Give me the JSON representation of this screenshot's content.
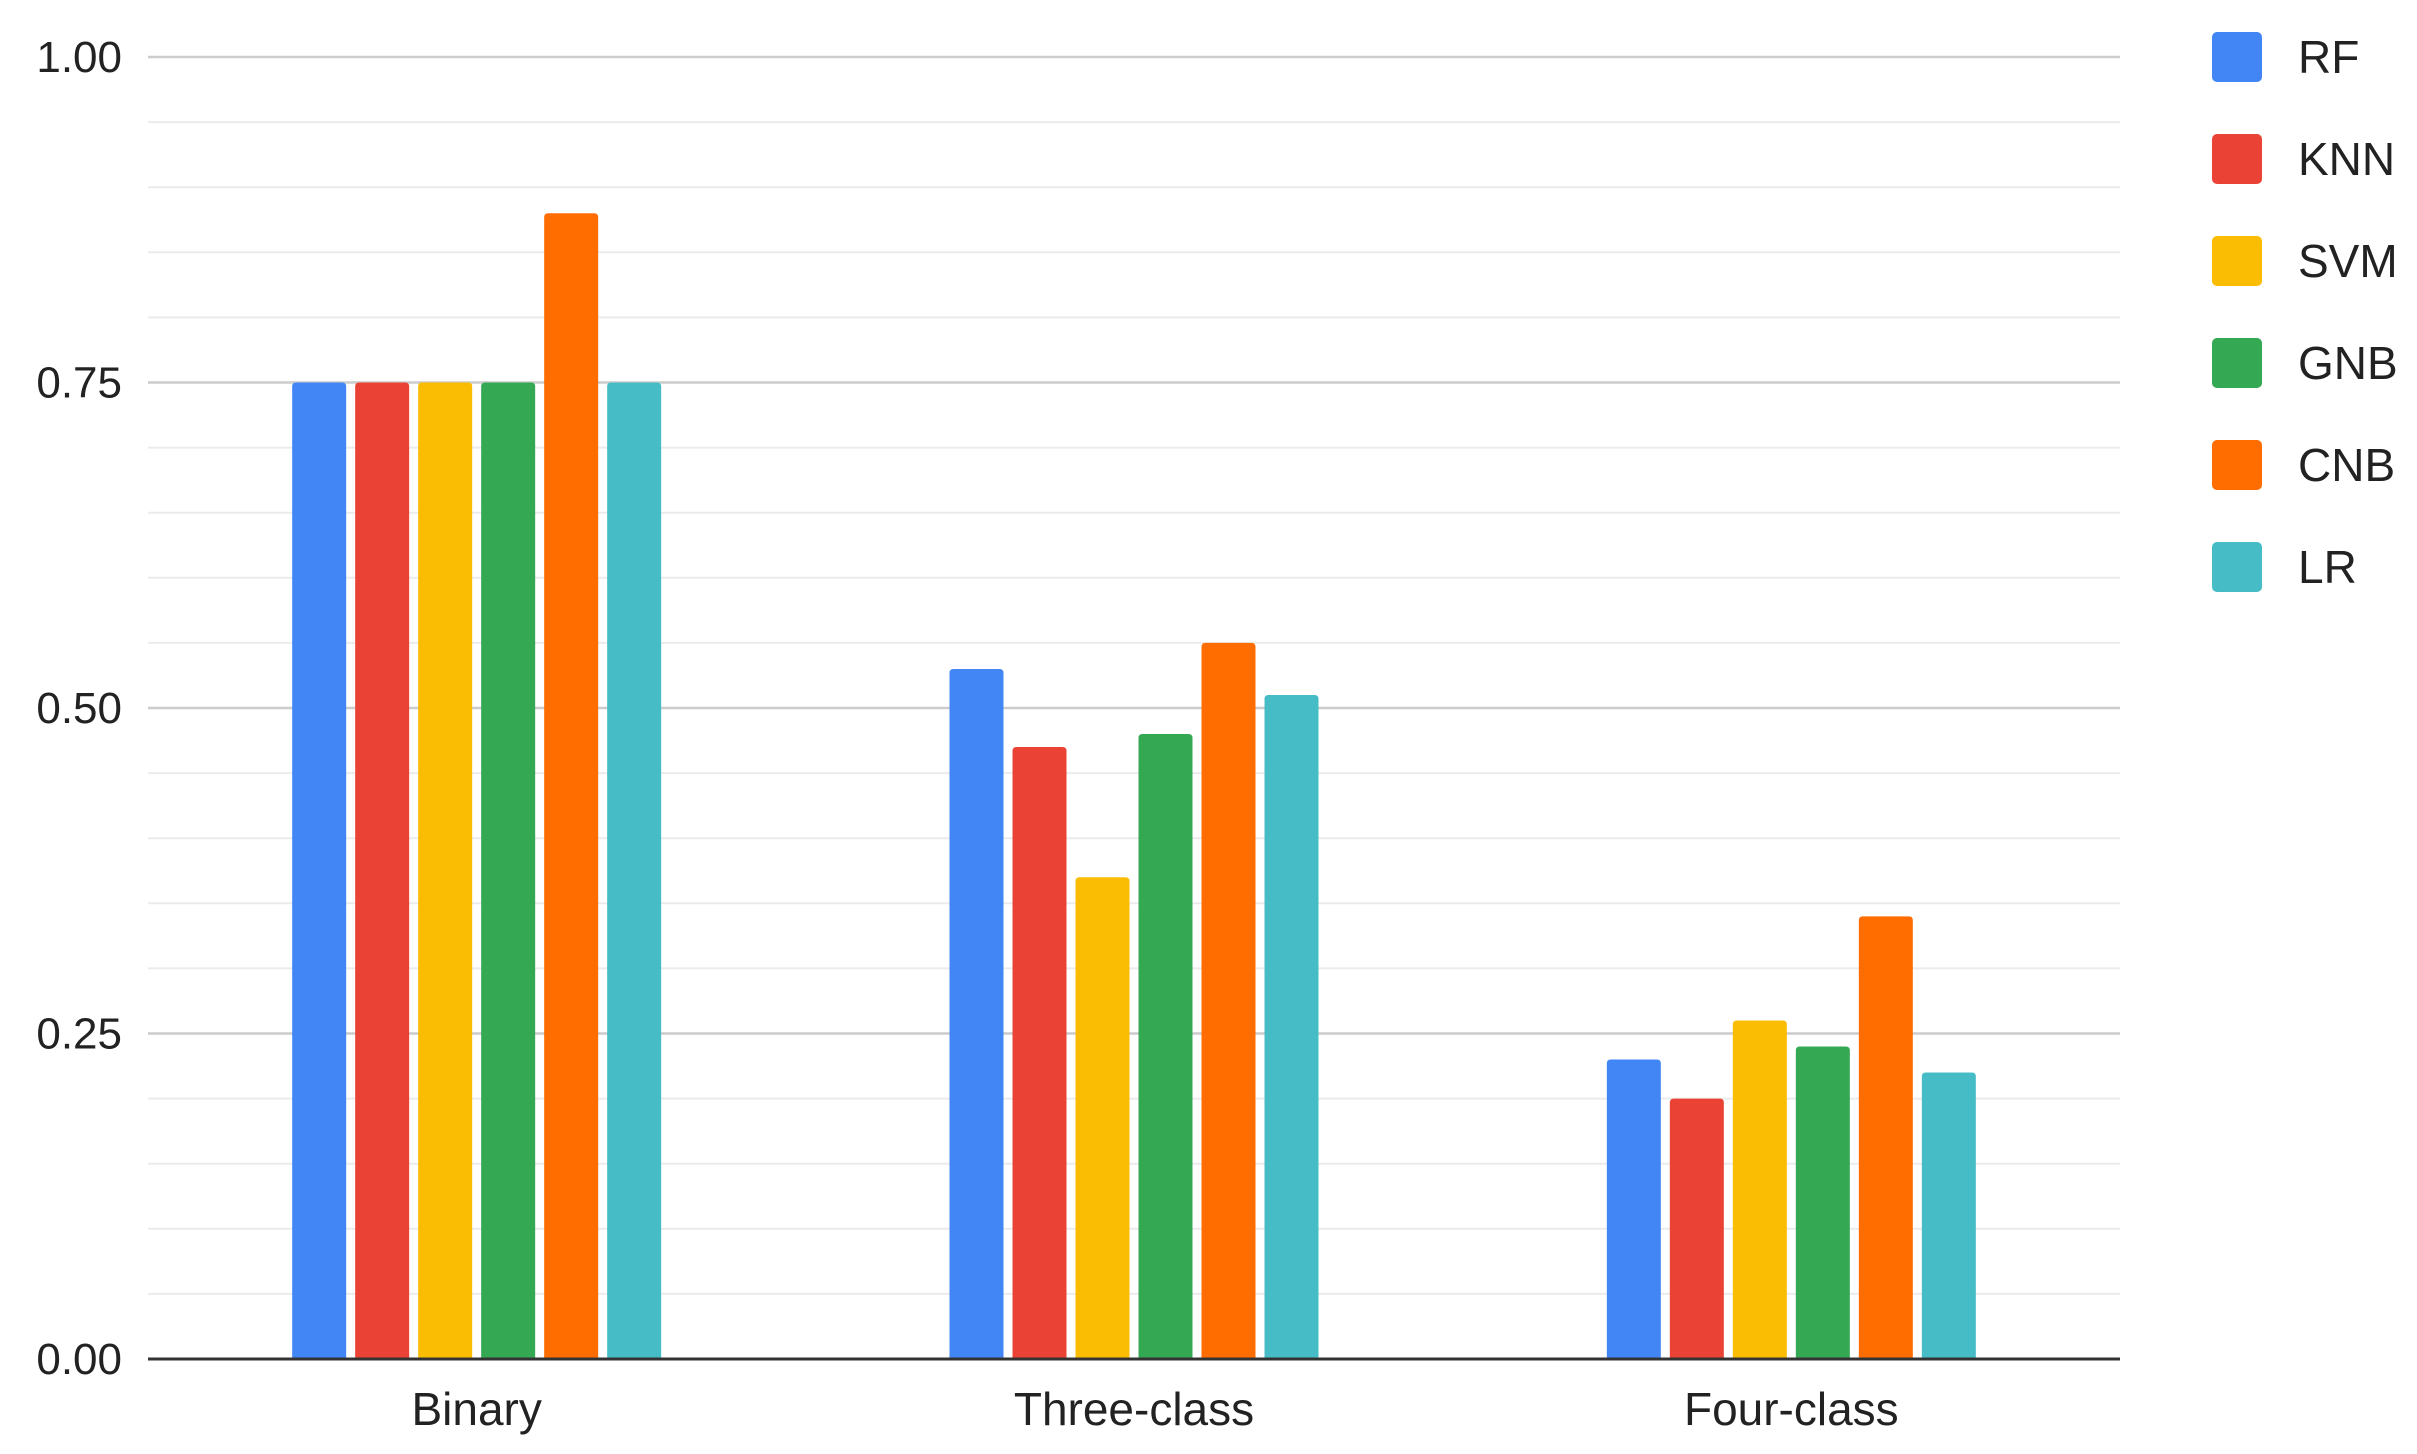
{
  "chart_data": {
    "type": "bar",
    "title": "",
    "xlabel": "",
    "ylabel": "",
    "categories": [
      "Binary",
      "Three-class",
      "Four-class"
    ],
    "series": [
      {
        "name": "RF",
        "color": "#4285F4",
        "values": [
          0.75,
          0.53,
          0.23
        ]
      },
      {
        "name": "KNN",
        "color": "#EA4335",
        "values": [
          0.75,
          0.47,
          0.2
        ]
      },
      {
        "name": "SVM",
        "color": "#FBBC04",
        "values": [
          0.75,
          0.37,
          0.26
        ]
      },
      {
        "name": "GNB",
        "color": "#34A853",
        "values": [
          0.75,
          0.48,
          0.24
        ]
      },
      {
        "name": "CNB",
        "color": "#FF6D01",
        "values": [
          0.88,
          0.55,
          0.34
        ]
      },
      {
        "name": "LR",
        "color": "#46BDC6",
        "values": [
          0.75,
          0.51,
          0.22
        ]
      }
    ],
    "ylim": [
      0,
      1
    ],
    "yticks": [
      "0.00",
      "0.25",
      "0.50",
      "0.75",
      "1.00"
    ],
    "grid": true,
    "minor_grid": true,
    "legend_position": "right"
  }
}
